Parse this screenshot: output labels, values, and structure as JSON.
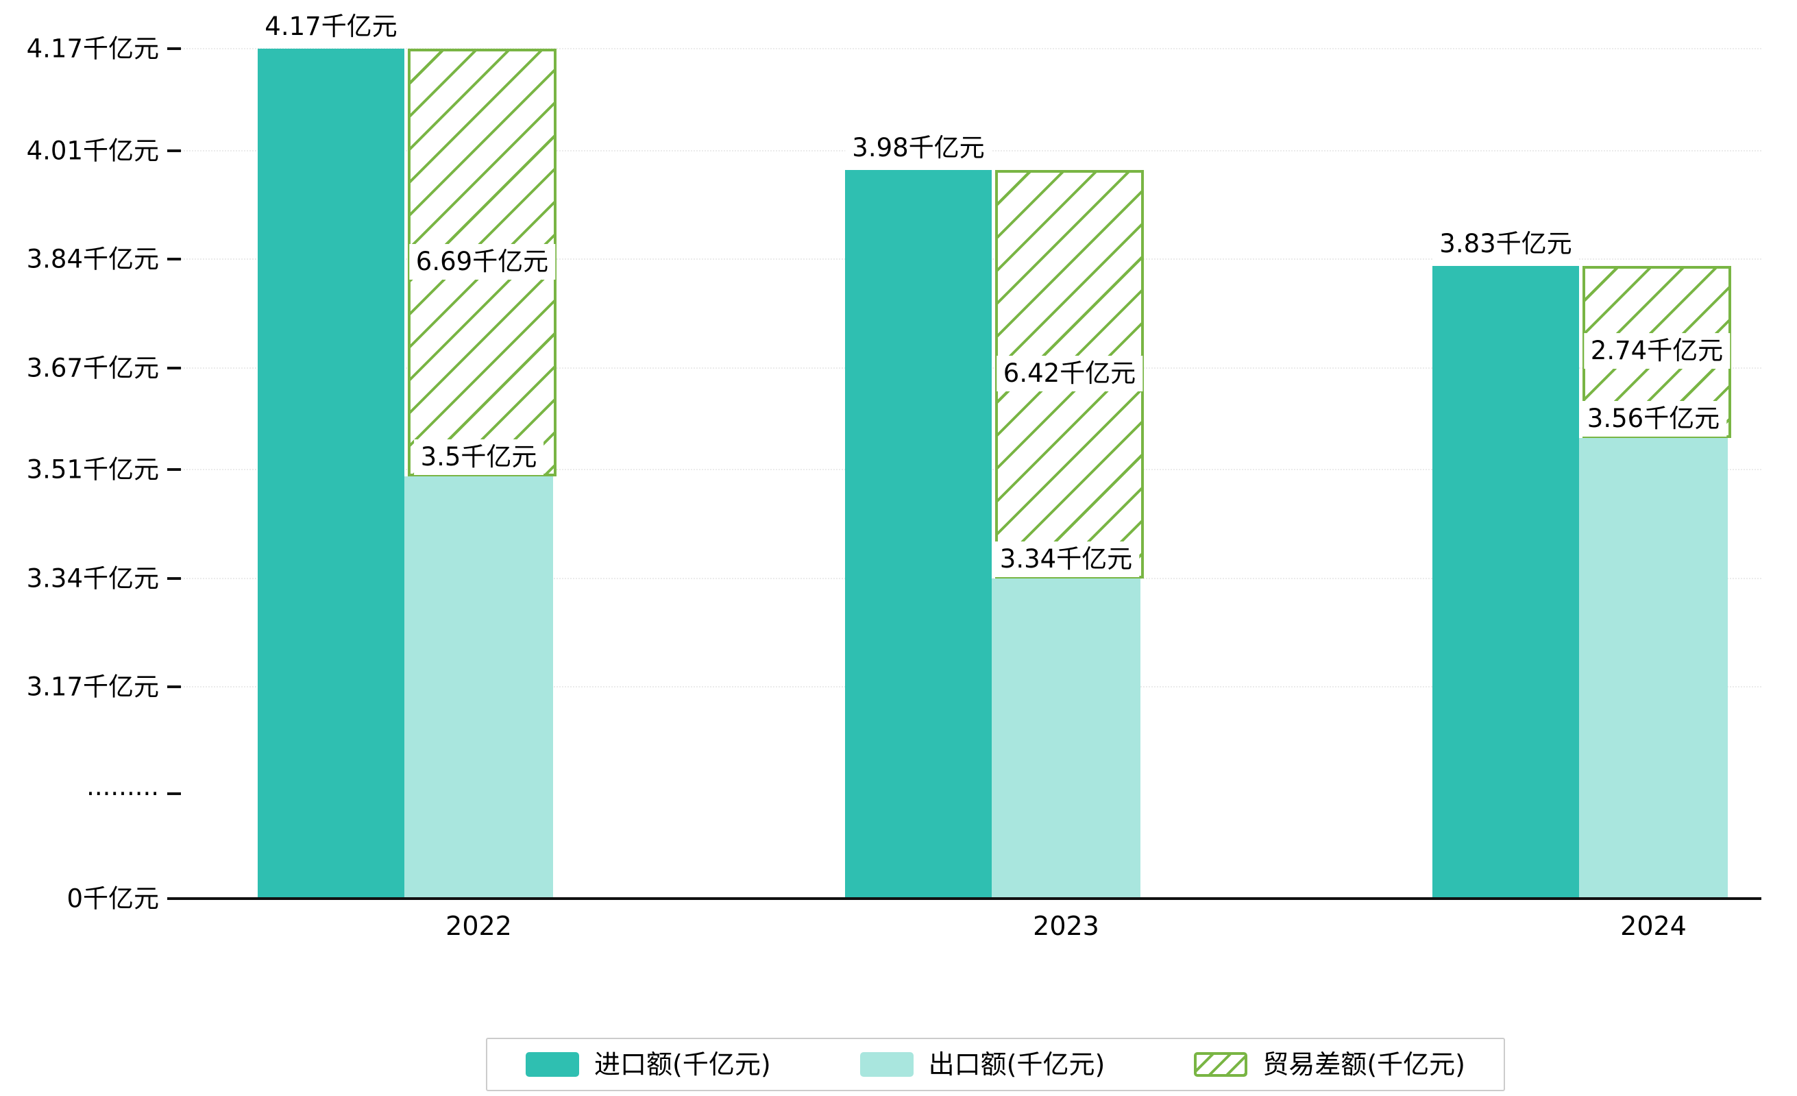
{
  "chart_data": {
    "type": "bar",
    "title": "",
    "categories": [
      "2022",
      "2023",
      "2024"
    ],
    "unit": "千亿元",
    "series": [
      {
        "name": "进口额(千亿元)",
        "key": "import",
        "style": "solid",
        "color": "#2fbfb1",
        "values": [
          4.17,
          3.98,
          3.83
        ],
        "data_labels": [
          "4.17千亿元",
          "3.98千亿元",
          "3.83千亿元"
        ]
      },
      {
        "name": "出口额(千亿元)",
        "key": "export",
        "style": "solid",
        "color": "#a9e6de",
        "values": [
          3.5,
          3.34,
          3.56
        ],
        "data_labels": [
          "3.5千亿元",
          "3.34千亿元",
          "3.56千亿元"
        ]
      },
      {
        "name": "贸易差额(千亿元)",
        "key": "trade-balance",
        "style": "hatched",
        "color": "#79b544",
        "values": [
          6.69,
          6.42,
          2.74
        ],
        "data_labels": [
          "6.69千亿元",
          "6.42千亿元",
          "2.74千亿元"
        ]
      }
    ],
    "y_axis": {
      "axis_break": true,
      "top_range": [
        3.17,
        4.17
      ],
      "ticks": [
        {
          "label": "4.17千亿元",
          "value": 4.17
        },
        {
          "label": "4.01千亿元",
          "value": 4.01
        },
        {
          "label": "3.84千亿元",
          "value": 3.84
        },
        {
          "label": "3.67千亿元",
          "value": 3.67
        },
        {
          "label": "3.51千亿元",
          "value": 3.51
        },
        {
          "label": "3.34千亿元",
          "value": 3.34
        },
        {
          "label": "3.17千亿元",
          "value": 3.17
        },
        {
          "label": "·········",
          "value": null
        },
        {
          "label": "0千亿元",
          "value": 0
        }
      ]
    },
    "grid": "dotted",
    "legend_position": "bottom",
    "legend_items": [
      "进口额(千亿元)",
      "出口额(千亿元)",
      "贸易差额(千亿元)"
    ]
  },
  "colors": {
    "import_bar": "#2fbfb1",
    "export_bar": "#a9e6de",
    "trade_balance_hatch": "#79b544",
    "axis": "#111111",
    "text": "#000000",
    "gridline": "#ebebeb",
    "legend_border": "#cccccc",
    "background": "#ffffff"
  }
}
